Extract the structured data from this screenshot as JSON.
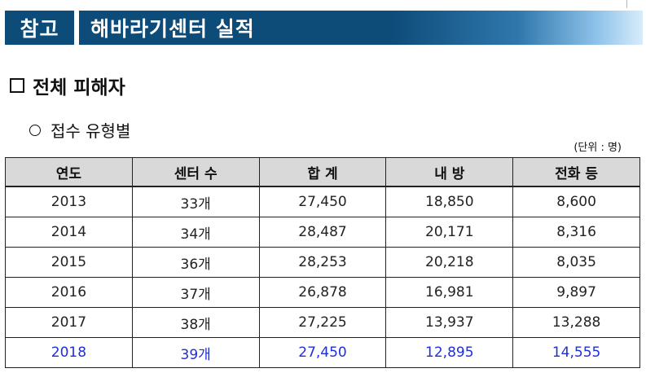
{
  "banner": {
    "tag": "참고",
    "title": "해바라기센터 실적"
  },
  "section": {
    "heading": "전체 피해자"
  },
  "subsection": {
    "heading": "접수 유형별"
  },
  "unit_note": "(단위 : 명)",
  "table": {
    "headers": [
      "연도",
      "센터 수",
      "합 계",
      "내 방",
      "전화 등"
    ],
    "rows": [
      [
        "2013",
        "33개",
        "27,450",
        "18,850",
        "8,600"
      ],
      [
        "2014",
        "34개",
        "28,487",
        "20,171",
        "8,316"
      ],
      [
        "2015",
        "36개",
        "28,253",
        "20,218",
        "8,035"
      ],
      [
        "2016",
        "37개",
        "26,878",
        "16,981",
        "9,897"
      ],
      [
        "2017",
        "38개",
        "27,225",
        "13,937",
        "13,288"
      ],
      [
        "2018",
        "39개",
        "27,450",
        "12,895",
        "14,555"
      ]
    ],
    "highlight_color": "#1f2fd6"
  },
  "colors": {
    "banner_dark": "#0d4b78",
    "header_bg": "#d9d9d9"
  }
}
